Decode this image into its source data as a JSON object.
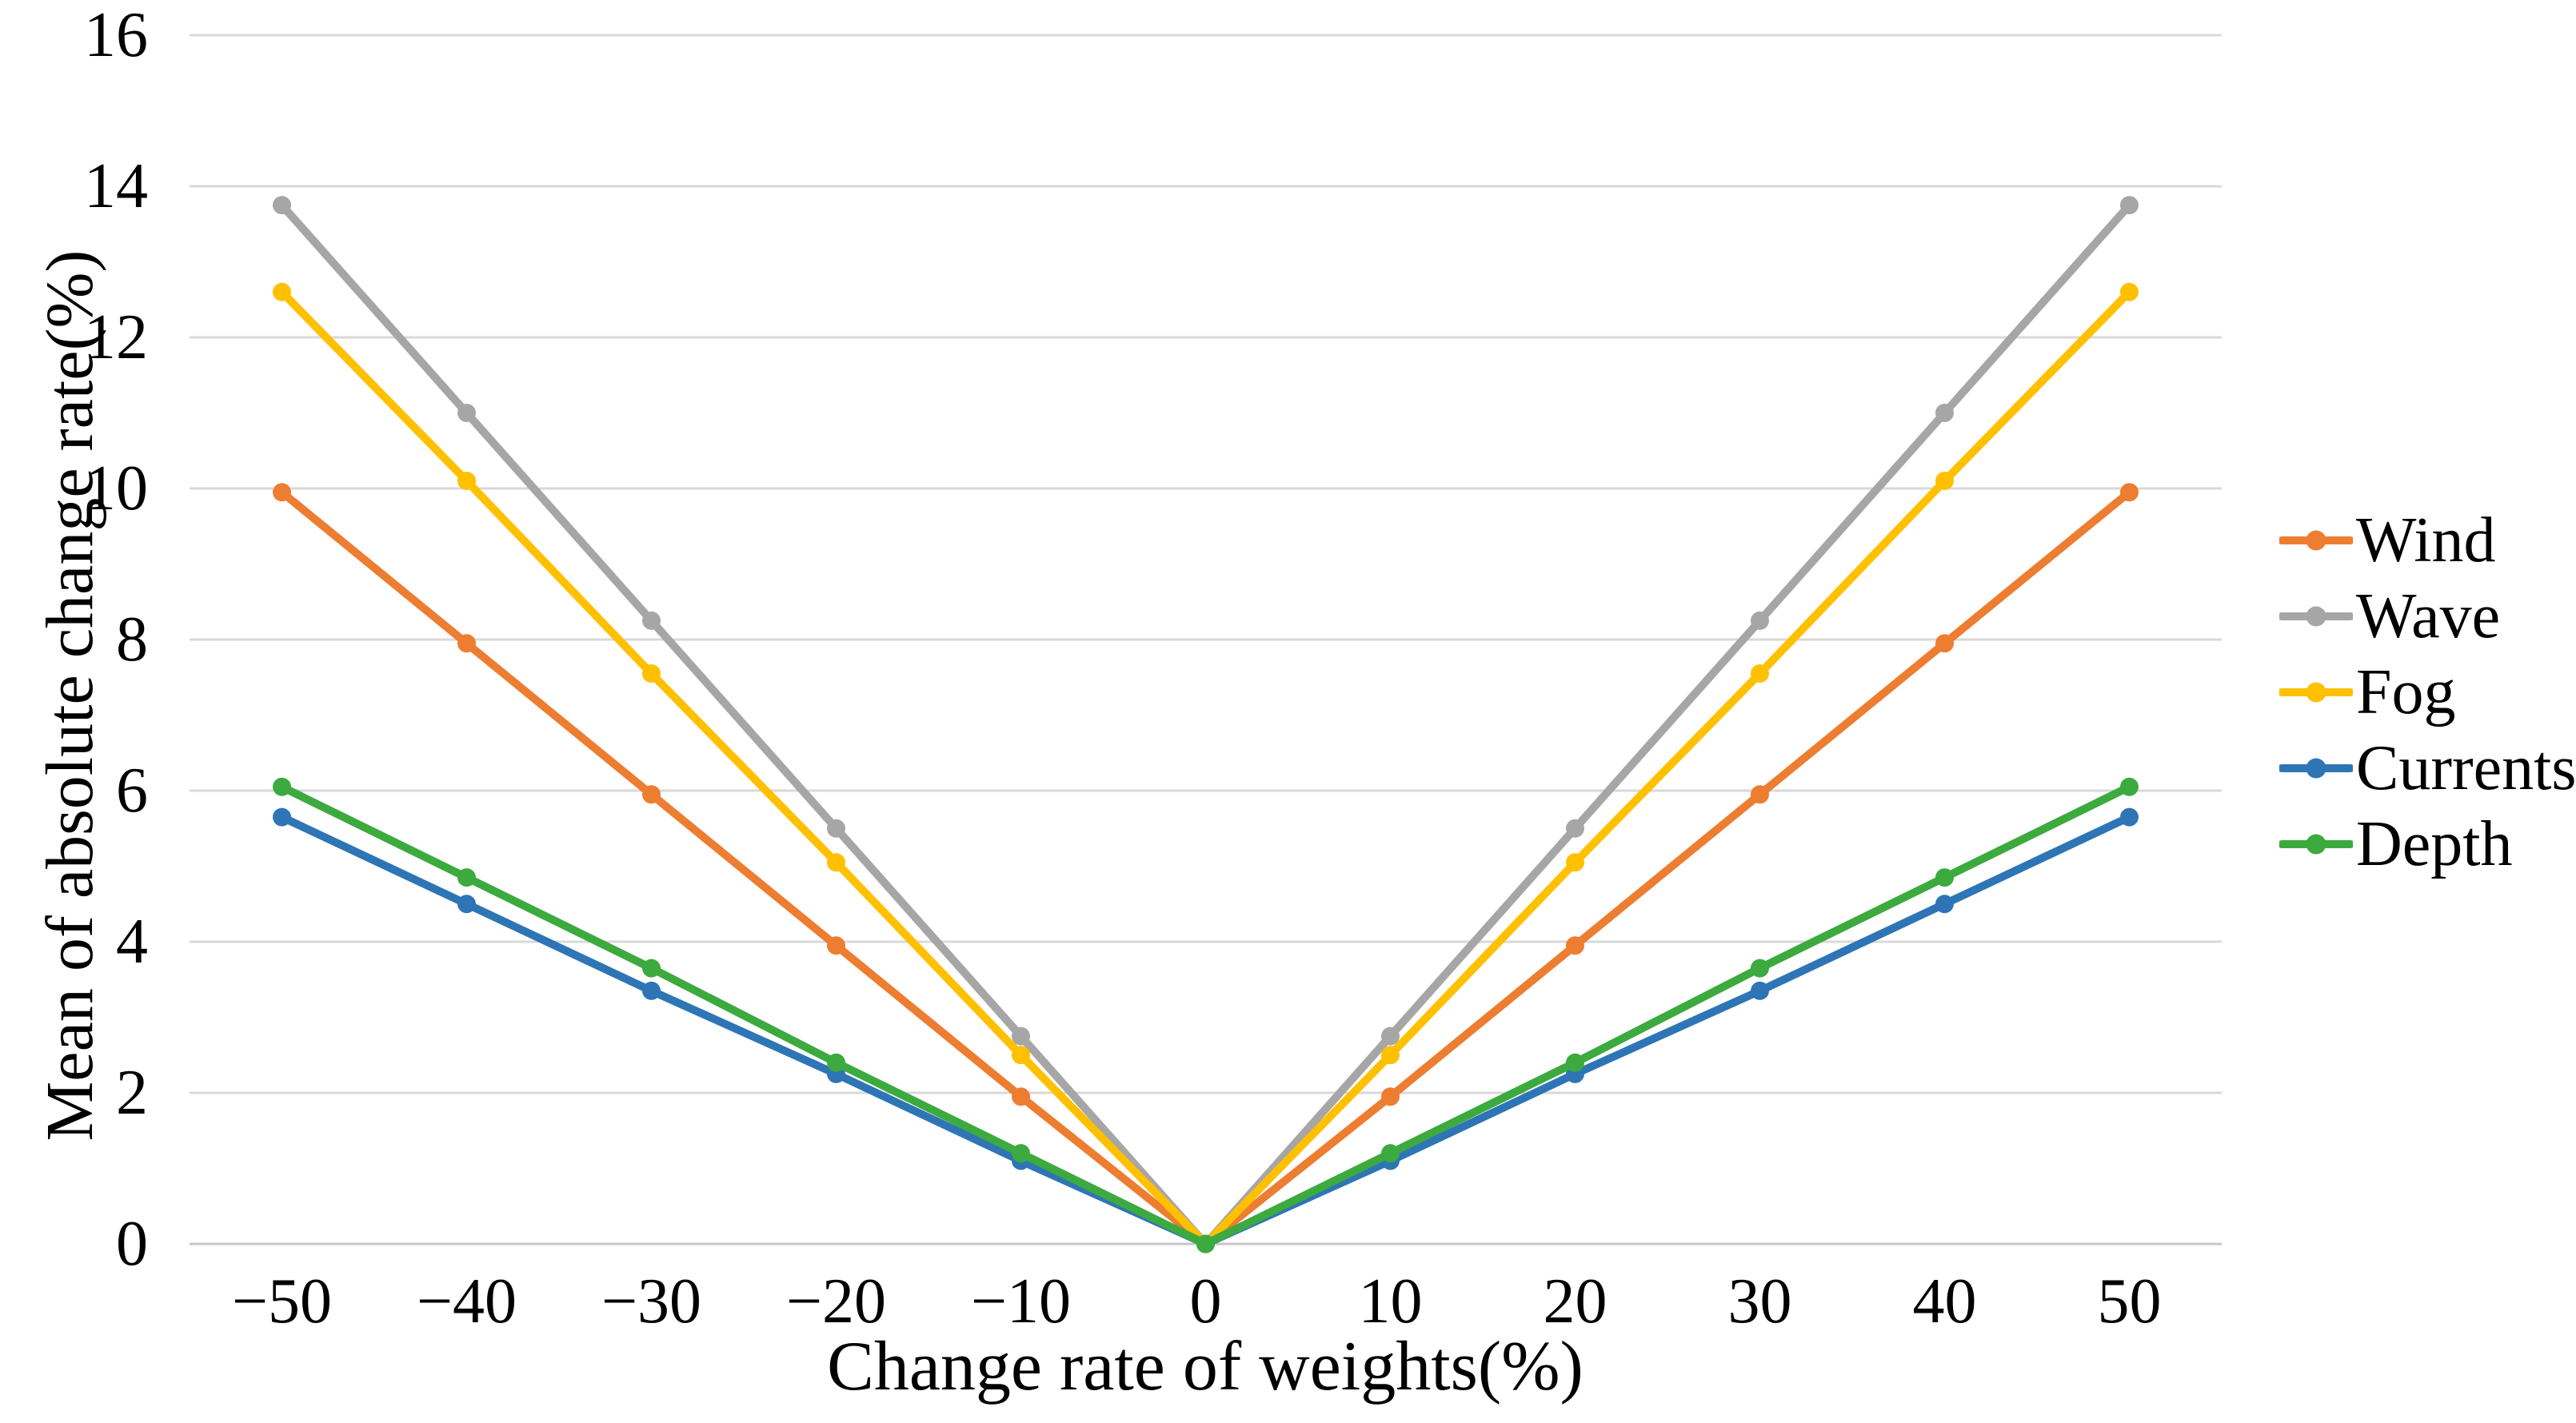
{
  "figure": {
    "background": "#FFFFFF",
    "text_color": "#000000"
  },
  "chart_data": {
    "type": "line",
    "title": "",
    "xlabel": "Change rate of weights(%)",
    "ylabel": "Mean of absolute change rate(%)",
    "categories": [
      -50,
      -40,
      -30,
      -20,
      -10,
      0,
      10,
      20,
      30,
      40,
      50
    ],
    "yticks": [
      0,
      2,
      4,
      6,
      8,
      10,
      12,
      14,
      16
    ],
    "ylim": [
      0,
      16
    ],
    "grid": "horizontal",
    "gridline_color": "#D9D9D9",
    "axis_line_color": "#C6C6C6",
    "marker": "circle",
    "legend_position": "right",
    "series": [
      {
        "name": "Wind",
        "color": "#ED7D31",
        "values": [
          9.95,
          7.95,
          5.95,
          3.95,
          1.95,
          0,
          1.95,
          3.95,
          5.95,
          7.95,
          9.95
        ]
      },
      {
        "name": "Wave",
        "color": "#A6A6A6",
        "values": [
          13.75,
          11.0,
          8.25,
          5.5,
          2.75,
          0,
          2.75,
          5.5,
          8.25,
          11.0,
          13.75
        ]
      },
      {
        "name": "Fog",
        "color": "#FFC000",
        "values": [
          12.6,
          10.1,
          7.55,
          5.05,
          2.5,
          0,
          2.5,
          5.05,
          7.55,
          10.1,
          12.6
        ]
      },
      {
        "name": "Currents",
        "color": "#2E75B6",
        "values": [
          5.65,
          4.5,
          3.35,
          2.25,
          1.1,
          0,
          1.1,
          2.25,
          3.35,
          4.5,
          5.65
        ]
      },
      {
        "name": "Depth",
        "color": "#3CAA3E",
        "values": [
          6.05,
          4.85,
          3.65,
          2.4,
          1.2,
          0,
          1.2,
          2.4,
          3.65,
          4.85,
          6.05
        ]
      }
    ]
  }
}
